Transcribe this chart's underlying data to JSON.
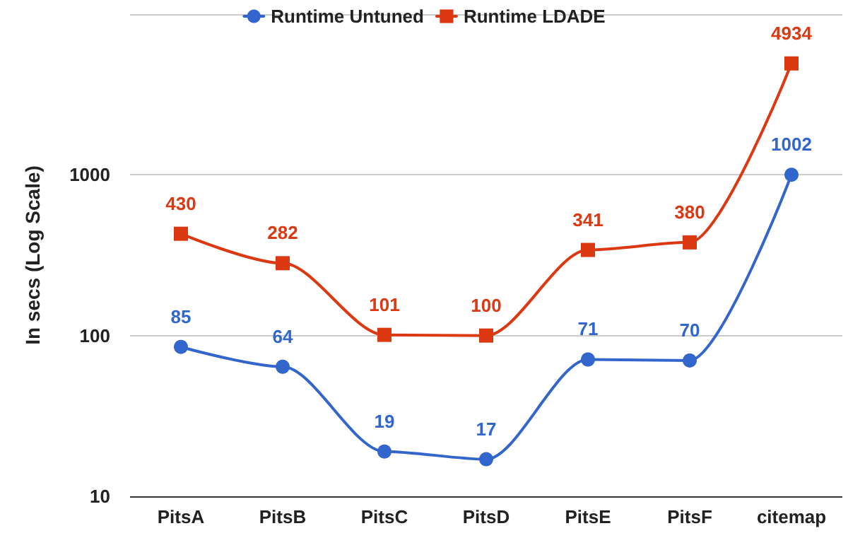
{
  "chart_data": {
    "type": "line",
    "ylabel": "In secs (Log Scale)",
    "categories": [
      "PitsA",
      "PitsB",
      "PitsC",
      "PitsD",
      "PitsE",
      "PitsF",
      "citemap"
    ],
    "series": [
      {
        "name": "Runtime Untuned",
        "color": "#3366cc",
        "marker": "circle",
        "values": [
          85,
          64,
          19,
          17,
          71,
          70,
          1002
        ]
      },
      {
        "name": "Runtime LDADE",
        "color": "#dc3912",
        "marker": "square",
        "values": [
          430,
          282,
          101,
          100,
          341,
          380,
          4934
        ]
      }
    ],
    "log": "y",
    "ylim": [
      10,
      10000
    ],
    "yticks": [
      10,
      100,
      1000,
      {
        "value": 10000,
        "label": null
      }
    ],
    "grid": "y",
    "legend": "top",
    "data_labels": true
  }
}
